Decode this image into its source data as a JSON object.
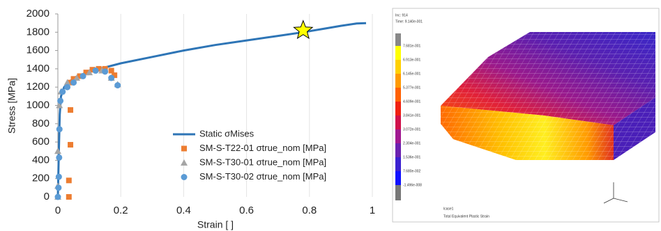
{
  "chart_data": {
    "type": "scatter",
    "xlabel": "Strain [ ]",
    "ylabel": "Stress [MPa]",
    "xlim": [
      0,
      1
    ],
    "ylim": [
      0,
      2000
    ],
    "xticks": [
      0,
      0.2,
      0.4,
      0.6,
      0.8,
      1
    ],
    "yticks": [
      0,
      200,
      400,
      600,
      800,
      1000,
      1200,
      1400,
      1600,
      1800,
      2000
    ],
    "grid": true,
    "series": [
      {
        "name": "Static σMises",
        "color": "#2e75b6",
        "marker": "line",
        "x": [
          0,
          0.003,
          0.006,
          0.01,
          0.02,
          0.05,
          0.1,
          0.2,
          0.3,
          0.4,
          0.5,
          0.6,
          0.7,
          0.78,
          0.85,
          0.9,
          0.95,
          0.98
        ],
        "values": [
          0,
          500,
          900,
          1100,
          1200,
          1300,
          1370,
          1460,
          1530,
          1600,
          1660,
          1710,
          1760,
          1800,
          1840,
          1870,
          1895,
          1900
        ]
      },
      {
        "name": "SM-S-T22-01 σtrue_nom [MPa]",
        "color": "#ed7d31",
        "marker": "square",
        "x": [
          0.035,
          0.035,
          0.04,
          0.04,
          0.04,
          0.05,
          0.07,
          0.09,
          0.11,
          0.13,
          0.15,
          0.17,
          0.18
        ],
        "values": [
          0,
          180,
          570,
          950,
          1250,
          1290,
          1320,
          1360,
          1390,
          1400,
          1400,
          1380,
          1330
        ]
      },
      {
        "name": "SM-S-T30-01 σtrue_nom [MPa]",
        "color": "#a5a5a5",
        "marker": "triangle",
        "x": [
          0,
          0,
          0,
          0.005,
          0.01,
          0.03,
          0.06,
          0.1,
          0.14,
          0.17,
          0.19
        ],
        "values": [
          0,
          120,
          500,
          1000,
          1150,
          1250,
          1300,
          1360,
          1380,
          1300,
          1230
        ]
      },
      {
        "name": "SM-S-T30-02 σtrue_nom [MPa]",
        "color": "#5b9bd5",
        "marker": "circle",
        "x": [
          0,
          0.002,
          0.003,
          0.004,
          0.005,
          0.008,
          0.015,
          0.03,
          0.05,
          0.08,
          0.12,
          0.15,
          0.17,
          0.19
        ],
        "values": [
          0,
          100,
          220,
          430,
          740,
          1050,
          1150,
          1200,
          1250,
          1320,
          1380,
          1370,
          1300,
          1220
        ]
      }
    ],
    "highlight": {
      "x": 0.78,
      "y": 1820,
      "marker": "star",
      "color": "#ffff00"
    }
  },
  "fem_view": {
    "inc": "Inc: 914",
    "time": "Time: 9.140e-001",
    "legend_labels": [
      "7.681e-001",
      "6.913e-001",
      "6.145e-001",
      "5.377e-001",
      "4.609e-001",
      "3.841e-001",
      "3.072e-001",
      "2.304e-001",
      "1.536e-001",
      "7.680e-002",
      "-1.496e-008"
    ],
    "load_case": "lcase1",
    "quantity": "Total Equivalent Plastic Strain"
  }
}
